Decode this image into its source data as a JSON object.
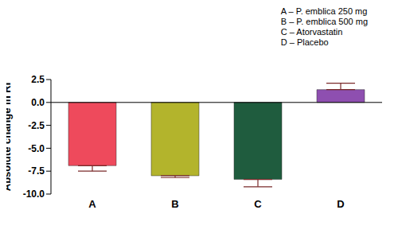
{
  "chart_data": {
    "type": "bar",
    "categories": [
      "A",
      "B",
      "C",
      "D"
    ],
    "values": [
      -6.9,
      -8.0,
      -8.4,
      1.4
    ],
    "errors": [
      0.6,
      0.2,
      0.8,
      0.7
    ],
    "colors": [
      "#ee4a5c",
      "#b3b42c",
      "#1f5c3e",
      "#8e4fb0"
    ],
    "ylabel": "Absolute change in RI",
    "ylim": [
      -10,
      2.5
    ],
    "yticks": [
      {
        "value": -10,
        "label": "-10.0"
      },
      -7.5,
      {
        "value": -5,
        "label": "-5.0"
      },
      -2.5,
      {
        "value": 0,
        "label": "0.0"
      },
      2.5
    ],
    "legend": "upper right",
    "annotations": [
      "A – P. emblica 250 mg",
      "B – P. emblica 500 mg",
      "C – Atorvastatin",
      "D – Placebo"
    ]
  }
}
